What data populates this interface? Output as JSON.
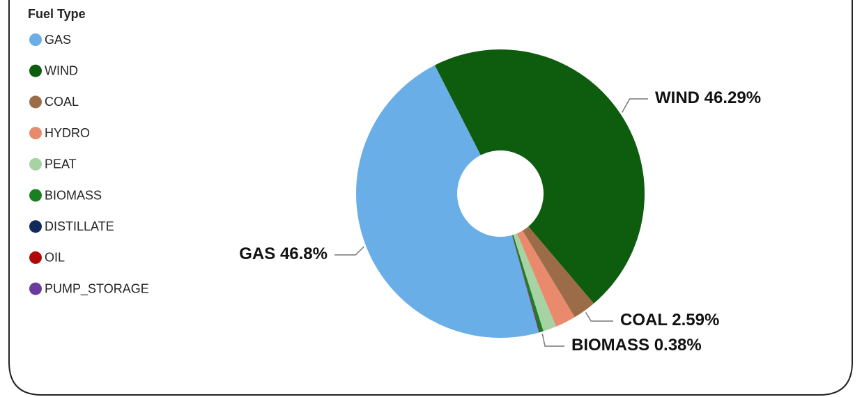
{
  "chart_data": {
    "type": "donut",
    "legend_title": "Fuel Type",
    "categories": [
      "GAS",
      "WIND",
      "COAL",
      "HYDRO",
      "PEAT",
      "BIOMASS",
      "DISTILLATE",
      "OIL",
      "PUMP_STORAGE"
    ],
    "values": [
      46.8,
      46.29,
      2.59,
      2.3,
      1.5,
      0.38,
      0.05,
      0.05,
      0.04
    ],
    "value_labels": [
      "46.8%",
      "46.29%",
      "2.59%",
      null,
      null,
      "0.38%",
      null,
      null,
      null
    ],
    "colors": [
      "#69aee6",
      "#0e5c0e",
      "#9c6c48",
      "#e98a6c",
      "#a6d3a4",
      "#1a7f1e",
      "#102a5c",
      "#b00808",
      "#6b3c9c"
    ],
    "legend": "left"
  }
}
